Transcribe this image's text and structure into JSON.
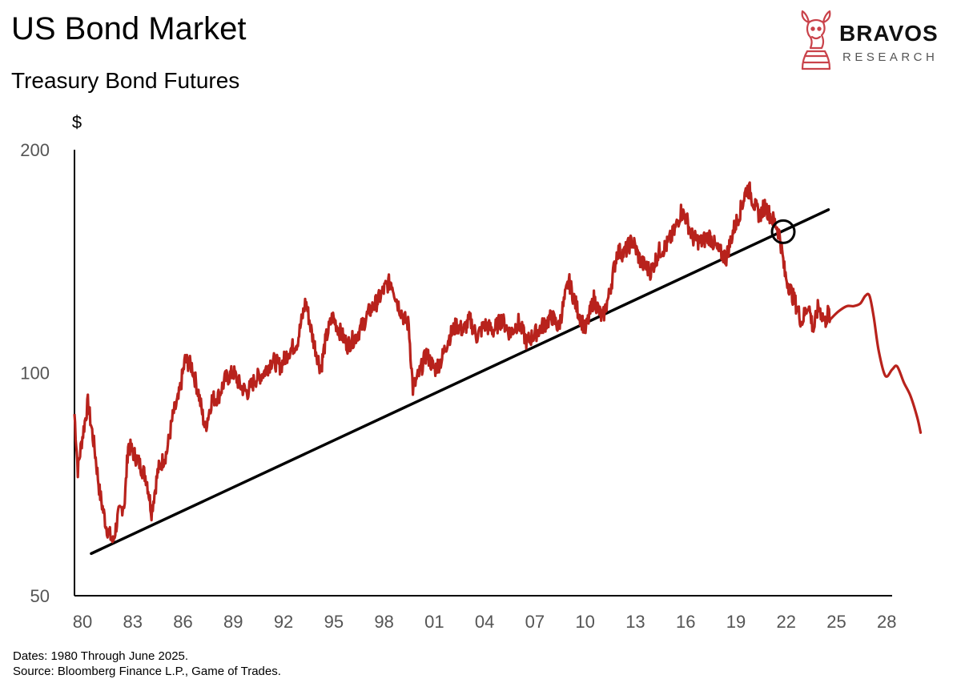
{
  "header": {
    "title": "US Bond Market",
    "subtitle": "Treasury Bond Futures"
  },
  "brand": {
    "name": "BRAVOS",
    "tagline": "RESEARCH",
    "color": "#c9424a",
    "icon": "bull-chess-knight-icon"
  },
  "footnote": {
    "dates": "Dates: 1980 Through June 2025.",
    "source": "Source: Bloomberg Finance L.P., Game of Trades."
  },
  "chart_data": {
    "type": "line",
    "title": "Treasury Bond Futures",
    "ylabel": "$",
    "yscale": "log",
    "ylim": [
      50,
      200
    ],
    "yticks": [
      50,
      100,
      200
    ],
    "ytick_labels": [
      "50",
      "100",
      "200"
    ],
    "xlim": [
      1980,
      2030.5
    ],
    "xticks": [
      1980,
      1983,
      1986,
      1989,
      1992,
      1995,
      1998,
      2001,
      2004,
      2007,
      2010,
      2013,
      2016,
      2019,
      2022,
      2025,
      2028
    ],
    "xtick_labels": [
      "80",
      "83",
      "86",
      "89",
      "92",
      "95",
      "98",
      "01",
      "04",
      "07",
      "10",
      "13",
      "16",
      "19",
      "22",
      "25",
      "28"
    ],
    "grid": false,
    "legend": "none",
    "colors": {
      "price": "#b8221c",
      "trend": "#000000",
      "marker": "#000000"
    },
    "series": [
      {
        "role": "historical",
        "x": [
          1980.0,
          1980.2,
          1980.4,
          1980.8,
          1981.2,
          1981.5,
          1981.9,
          1982.3,
          1982.6,
          1983.0,
          1983.2,
          1983.8,
          1984.3,
          1984.6,
          1985.0,
          1985.5,
          1985.9,
          1986.2,
          1986.6,
          1987.0,
          1987.4,
          1987.8,
          1988.2,
          1988.6,
          1989.0,
          1989.5,
          1989.9,
          1990.3,
          1990.8,
          1991.3,
          1991.8,
          1992.3,
          1992.8,
          1993.3,
          1993.8,
          1994.2,
          1994.7,
          1995.0,
          1995.4,
          1995.9,
          1996.3,
          1996.8,
          1997.2,
          1997.6,
          1998.1,
          1998.6,
          1998.9,
          1999.3,
          1999.7,
          1999.95,
          2000.2,
          2000.6,
          2001.0,
          2001.5,
          2001.9,
          2002.3,
          2002.8,
          2003.2,
          2003.6,
          2004.0,
          2004.5,
          2005.0,
          2005.5,
          2006.0,
          2006.5,
          2007.0,
          2007.5,
          2008.0,
          2008.5,
          2008.9,
          2009.1,
          2009.5,
          2010.0,
          2010.5,
          2011.0,
          2011.5,
          2011.9,
          2012.4,
          2012.8,
          2013.3,
          2013.8,
          2014.4,
          2014.9,
          2015.3,
          2015.8,
          2016.2,
          2016.5,
          2016.9,
          2017.4,
          2017.9,
          2018.4,
          2018.9,
          2019.3,
          2019.8,
          2020.1,
          2020.3,
          2020.6,
          2020.9,
          2021.2,
          2021.6,
          2021.9,
          2022.1,
          2022.4,
          2022.8,
          2023.1,
          2023.4,
          2023.8,
          2024.1,
          2024.4,
          2024.8,
          2025.0,
          2025.1
        ],
        "y": [
          88,
          74,
          80,
          91,
          79,
          69,
          62,
          59,
          64,
          67,
          80,
          76,
          72,
          65,
          74,
          78,
          88,
          92,
          104,
          102,
          94,
          84,
          92,
          93,
          98,
          100,
          96,
          94,
          98,
          100,
          104,
          102,
          107,
          110,
          125,
          112,
          101,
          111,
          119,
          113,
          109,
          112,
          116,
          121,
          125,
          131,
          133,
          124,
          118,
          116,
          95,
          100,
          106,
          101,
          104,
          111,
          116,
          114,
          118,
          112,
          116,
          114,
          118,
          113,
          117,
          110,
          113,
          116,
          119,
          115,
          121,
          133,
          122,
          114,
          126,
          118,
          127,
          146,
          145,
          151,
          141,
          137,
          146,
          148,
          155,
          165,
          162,
          152,
          150,
          153,
          146,
          143,
          155,
          167,
          177,
          176,
          168,
          163,
          168,
          162,
          158,
          153,
          136,
          128,
          123,
          117,
          124,
          114,
          123,
          117,
          121,
          118
        ]
      },
      {
        "role": "projection",
        "x": [
          2025.1,
          2025.6,
          2026.1,
          2026.5,
          2026.9,
          2027.2,
          2027.45,
          2027.7,
          2028.0,
          2028.4,
          2028.8,
          2029.1,
          2029.5,
          2029.9,
          2030.3,
          2030.5
        ],
        "y": [
          118,
          121,
          123,
          123,
          124,
          127,
          127,
          119,
          107,
          99,
          101,
          102,
          97,
          93,
          87,
          83
        ]
      }
    ],
    "trendline": {
      "x": [
        1981.0,
        2025.0
      ],
      "y": [
        57,
        166
      ]
    },
    "annotations": [
      {
        "type": "circle",
        "x": 2022.3,
        "y": 155
      }
    ]
  }
}
